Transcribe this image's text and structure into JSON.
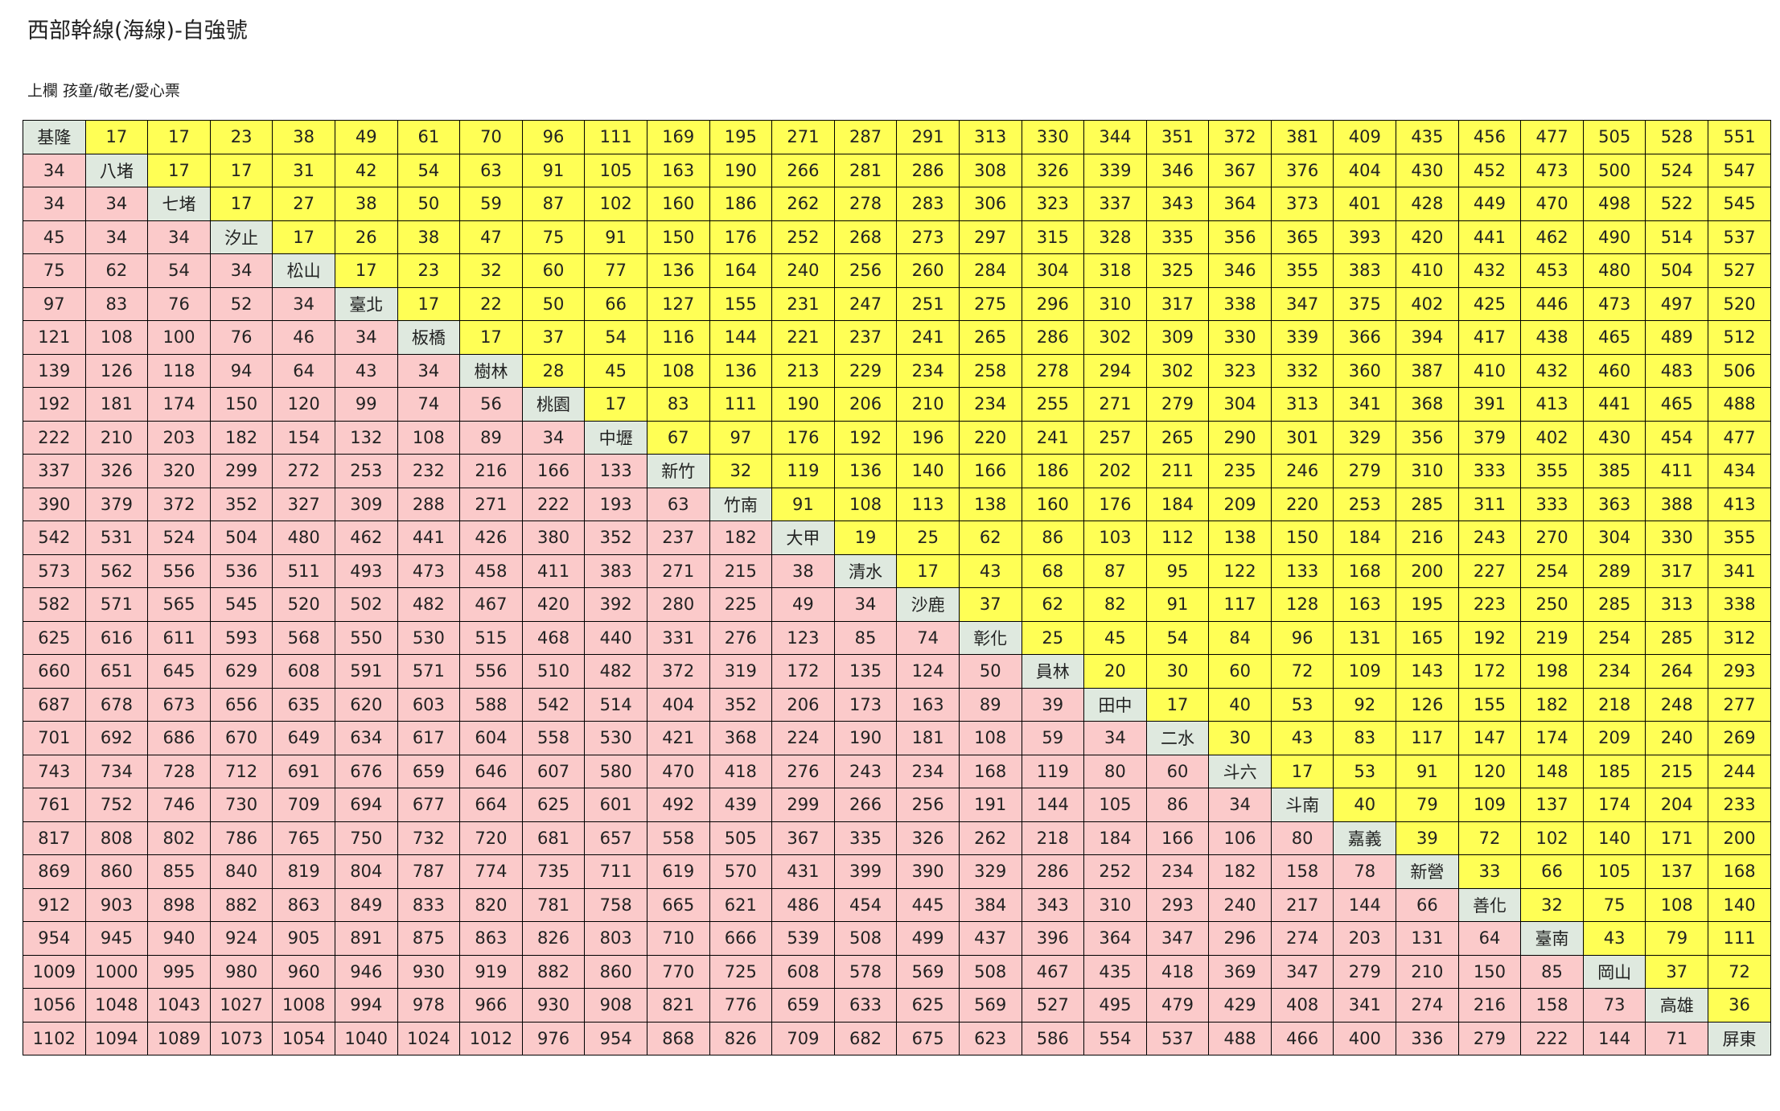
{
  "header": {
    "title": "西部幹線(海線)-自強號",
    "subtitle": "上欄 孩童/敬老/愛心票"
  },
  "table": {
    "rows": [
      [
        "基隆",
        17,
        17,
        23,
        38,
        49,
        61,
        70,
        96,
        111,
        169,
        195,
        271,
        287,
        291,
        313,
        330,
        344,
        351,
        372,
        381,
        409,
        435,
        456,
        477,
        505,
        528,
        551
      ],
      [
        34,
        "八堵",
        17,
        17,
        31,
        42,
        54,
        63,
        91,
        105,
        163,
        190,
        266,
        281,
        286,
        308,
        326,
        339,
        346,
        367,
        376,
        404,
        430,
        452,
        473,
        500,
        524,
        547
      ],
      [
        34,
        34,
        "七堵",
        17,
        27,
        38,
        50,
        59,
        87,
        102,
        160,
        186,
        262,
        278,
        283,
        306,
        323,
        337,
        343,
        364,
        373,
        401,
        428,
        449,
        470,
        498,
        522,
        545
      ],
      [
        45,
        34,
        34,
        "汐止",
        17,
        26,
        38,
        47,
        75,
        91,
        150,
        176,
        252,
        268,
        273,
        297,
        315,
        328,
        335,
        356,
        365,
        393,
        420,
        441,
        462,
        490,
        514,
        537
      ],
      [
        75,
        62,
        54,
        34,
        "松山",
        17,
        23,
        32,
        60,
        77,
        136,
        164,
        240,
        256,
        260,
        284,
        304,
        318,
        325,
        346,
        355,
        383,
        410,
        432,
        453,
        480,
        504,
        527
      ],
      [
        97,
        83,
        76,
        52,
        34,
        "臺北",
        17,
        22,
        50,
        66,
        127,
        155,
        231,
        247,
        251,
        275,
        296,
        310,
        317,
        338,
        347,
        375,
        402,
        425,
        446,
        473,
        497,
        520
      ],
      [
        121,
        108,
        100,
        76,
        46,
        34,
        "板橋",
        17,
        37,
        54,
        116,
        144,
        221,
        237,
        241,
        265,
        286,
        302,
        309,
        330,
        339,
        366,
        394,
        417,
        438,
        465,
        489,
        512
      ],
      [
        139,
        126,
        118,
        94,
        64,
        43,
        34,
        "樹林",
        28,
        45,
        108,
        136,
        213,
        229,
        234,
        258,
        278,
        294,
        302,
        323,
        332,
        360,
        387,
        410,
        432,
        460,
        483,
        506
      ],
      [
        192,
        181,
        174,
        150,
        120,
        99,
        74,
        56,
        "桃園",
        17,
        83,
        111,
        190,
        206,
        210,
        234,
        255,
        271,
        279,
        304,
        313,
        341,
        368,
        391,
        413,
        441,
        465,
        488
      ],
      [
        222,
        210,
        203,
        182,
        154,
        132,
        108,
        89,
        34,
        "中壢",
        67,
        97,
        176,
        192,
        196,
        220,
        241,
        257,
        265,
        290,
        301,
        329,
        356,
        379,
        402,
        430,
        454,
        477
      ],
      [
        337,
        326,
        320,
        299,
        272,
        253,
        232,
        216,
        166,
        133,
        "新竹",
        32,
        119,
        136,
        140,
        166,
        186,
        202,
        211,
        235,
        246,
        279,
        310,
        333,
        355,
        385,
        411,
        434
      ],
      [
        390,
        379,
        372,
        352,
        327,
        309,
        288,
        271,
        222,
        193,
        63,
        "竹南",
        91,
        108,
        113,
        138,
        160,
        176,
        184,
        209,
        220,
        253,
        285,
        311,
        333,
        363,
        388,
        413
      ],
      [
        542,
        531,
        524,
        504,
        480,
        462,
        441,
        426,
        380,
        352,
        237,
        182,
        "大甲",
        19,
        25,
        62,
        86,
        103,
        112,
        138,
        150,
        184,
        216,
        243,
        270,
        304,
        330,
        355
      ],
      [
        573,
        562,
        556,
        536,
        511,
        493,
        473,
        458,
        411,
        383,
        271,
        215,
        38,
        "清水",
        17,
        43,
        68,
        87,
        95,
        122,
        133,
        168,
        200,
        227,
        254,
        289,
        317,
        341
      ],
      [
        582,
        571,
        565,
        545,
        520,
        502,
        482,
        467,
        420,
        392,
        280,
        225,
        49,
        34,
        "沙鹿",
        37,
        62,
        82,
        91,
        117,
        128,
        163,
        195,
        223,
        250,
        285,
        313,
        338
      ],
      [
        625,
        616,
        611,
        593,
        568,
        550,
        530,
        515,
        468,
        440,
        331,
        276,
        123,
        85,
        74,
        "彰化",
        25,
        45,
        54,
        84,
        96,
        131,
        165,
        192,
        219,
        254,
        285,
        312
      ],
      [
        660,
        651,
        645,
        629,
        608,
        591,
        571,
        556,
        510,
        482,
        372,
        319,
        172,
        135,
        124,
        50,
        "員林",
        20,
        30,
        60,
        72,
        109,
        143,
        172,
        198,
        234,
        264,
        293
      ],
      [
        687,
        678,
        673,
        656,
        635,
        620,
        603,
        588,
        542,
        514,
        404,
        352,
        206,
        173,
        163,
        89,
        39,
        "田中",
        17,
        40,
        53,
        92,
        126,
        155,
        182,
        218,
        248,
        277
      ],
      [
        701,
        692,
        686,
        670,
        649,
        634,
        617,
        604,
        558,
        530,
        421,
        368,
        224,
        190,
        181,
        108,
        59,
        34,
        "二水",
        30,
        43,
        83,
        117,
        147,
        174,
        209,
        240,
        269
      ],
      [
        743,
        734,
        728,
        712,
        691,
        676,
        659,
        646,
        607,
        580,
        470,
        418,
        276,
        243,
        234,
        168,
        119,
        80,
        60,
        "斗六",
        17,
        53,
        91,
        120,
        148,
        185,
        215,
        244
      ],
      [
        761,
        752,
        746,
        730,
        709,
        694,
        677,
        664,
        625,
        601,
        492,
        439,
        299,
        266,
        256,
        191,
        144,
        105,
        86,
        34,
        "斗南",
        40,
        79,
        109,
        137,
        174,
        204,
        233
      ],
      [
        817,
        808,
        802,
        786,
        765,
        750,
        732,
        720,
        681,
        657,
        558,
        505,
        367,
        335,
        326,
        262,
        218,
        184,
        166,
        106,
        80,
        "嘉義",
        39,
        72,
        102,
        140,
        171,
        200
      ],
      [
        869,
        860,
        855,
        840,
        819,
        804,
        787,
        774,
        735,
        711,
        619,
        570,
        431,
        399,
        390,
        329,
        286,
        252,
        234,
        182,
        158,
        78,
        "新營",
        33,
        66,
        105,
        137,
        168
      ],
      [
        912,
        903,
        898,
        882,
        863,
        849,
        833,
        820,
        781,
        758,
        665,
        621,
        486,
        454,
        445,
        384,
        343,
        310,
        293,
        240,
        217,
        144,
        66,
        "善化",
        32,
        75,
        108,
        140
      ],
      [
        954,
        945,
        940,
        924,
        905,
        891,
        875,
        863,
        826,
        803,
        710,
        666,
        539,
        508,
        499,
        437,
        396,
        364,
        347,
        296,
        274,
        203,
        131,
        64,
        "臺南",
        43,
        79,
        111
      ],
      [
        1009,
        1000,
        995,
        980,
        960,
        946,
        930,
        919,
        882,
        860,
        770,
        725,
        608,
        578,
        569,
        508,
        467,
        435,
        418,
        369,
        347,
        279,
        210,
        150,
        85,
        "岡山",
        37,
        72
      ],
      [
        1056,
        1048,
        1043,
        1027,
        1008,
        994,
        978,
        966,
        930,
        908,
        821,
        776,
        659,
        633,
        625,
        569,
        527,
        495,
        479,
        429,
        408,
        341,
        274,
        216,
        158,
        73,
        "高雄",
        36
      ],
      [
        1102,
        1094,
        1089,
        1073,
        1054,
        1040,
        1024,
        1012,
        976,
        954,
        868,
        826,
        709,
        682,
        675,
        623,
        586,
        554,
        537,
        488,
        466,
        400,
        336,
        279,
        222,
        144,
        71,
        "屏東"
      ]
    ]
  }
}
